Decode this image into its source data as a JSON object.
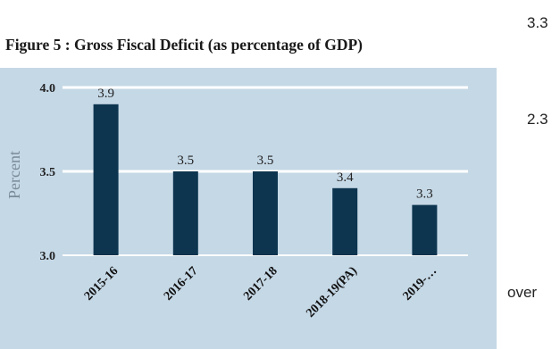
{
  "figure_title": "Figure 5 : Gross Fiscal Deficit (as percentage of GDP)",
  "side_text": [
    "3.3",
    "2.3",
    "over"
  ],
  "colors": {
    "bar": "#0d3550",
    "plot_background": "#c5d8e6",
    "gridline": "#ffffff",
    "text": "#222222"
  },
  "chart_data": {
    "type": "bar",
    "title": "Figure 5 : Gross Fiscal Deficit (as percentage of GDP)",
    "xlabel": "",
    "ylabel": "Percent",
    "categories": [
      "2015-16",
      "2016-17",
      "2017-18",
      "2018-19(PA)",
      "2019-…"
    ],
    "values": [
      3.9,
      3.5,
      3.5,
      3.4,
      3.3
    ],
    "data_labels": [
      "3.9",
      "3.5",
      "3.5",
      "3.4",
      "3.3"
    ],
    "yticks": [
      "4.0",
      "3.5",
      "3.0"
    ],
    "ytick_values": [
      4.0,
      3.5,
      3.0
    ],
    "ylim": [
      3.0,
      4.0
    ],
    "grid": true,
    "legend": "none"
  }
}
